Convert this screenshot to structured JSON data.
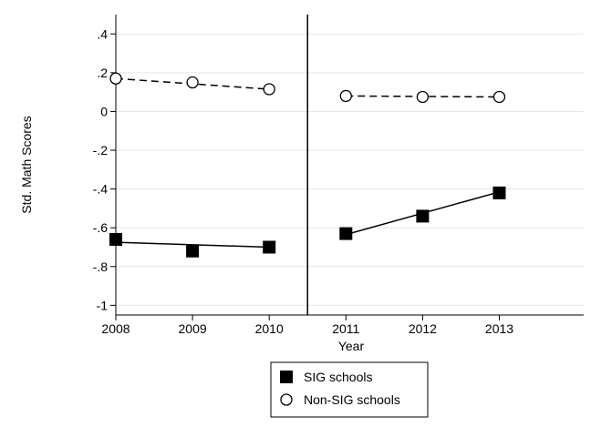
{
  "chart_data": {
    "type": "scatter",
    "title": "",
    "xlabel": "Year",
    "ylabel": "Std. Math Scores",
    "xlim": [
      2008,
      2014.1
    ],
    "ylim": [
      -1.05,
      0.5
    ],
    "x_ticks": [
      "2008",
      "2009",
      "2010",
      "2011",
      "2012",
      "2013"
    ],
    "y_ticks": [
      {
        "value": 0.4,
        "label": ".4"
      },
      {
        "value": 0.2,
        "label": ".2"
      },
      {
        "value": 0.0,
        "label": "0"
      },
      {
        "value": -0.2,
        "label": "-.2"
      },
      {
        "value": -0.4,
        "label": "-.4"
      },
      {
        "value": -0.6,
        "label": "-.6"
      },
      {
        "value": -0.8,
        "label": "-.8"
      },
      {
        "value": -1.0,
        "label": "-1"
      }
    ],
    "grid": true,
    "cutoff_line_x": 2010.5,
    "legend_position": "bottom",
    "series": [
      {
        "name": "SIG schools",
        "marker": "filled-square",
        "color": "#000000",
        "points": [
          {
            "x": 2008,
            "y": -0.66
          },
          {
            "x": 2009,
            "y": -0.72
          },
          {
            "x": 2010,
            "y": -0.7
          },
          {
            "x": 2011,
            "y": -0.63
          },
          {
            "x": 2012,
            "y": -0.54
          },
          {
            "x": 2013,
            "y": -0.42
          }
        ],
        "fits": [
          {
            "x": [
              2008,
              2010
            ],
            "y": [
              -0.675,
              -0.7
            ],
            "style": "solid"
          },
          {
            "x": [
              2011,
              2013
            ],
            "y": [
              -0.635,
              -0.415
            ],
            "style": "solid"
          }
        ]
      },
      {
        "name": "Non-SIG schools",
        "marker": "hollow-circle",
        "color": "#000000",
        "points": [
          {
            "x": 2008,
            "y": 0.17
          },
          {
            "x": 2009,
            "y": 0.15
          },
          {
            "x": 2010,
            "y": 0.115
          },
          {
            "x": 2011,
            "y": 0.08
          },
          {
            "x": 2012,
            "y": 0.075
          },
          {
            "x": 2013,
            "y": 0.075
          }
        ],
        "fits": [
          {
            "x": [
              2008,
              2010
            ],
            "y": [
              0.17,
              0.115
            ],
            "style": "dashed"
          },
          {
            "x": [
              2011,
              2013
            ],
            "y": [
              0.08,
              0.075
            ],
            "style": "dashed"
          }
        ]
      }
    ]
  }
}
